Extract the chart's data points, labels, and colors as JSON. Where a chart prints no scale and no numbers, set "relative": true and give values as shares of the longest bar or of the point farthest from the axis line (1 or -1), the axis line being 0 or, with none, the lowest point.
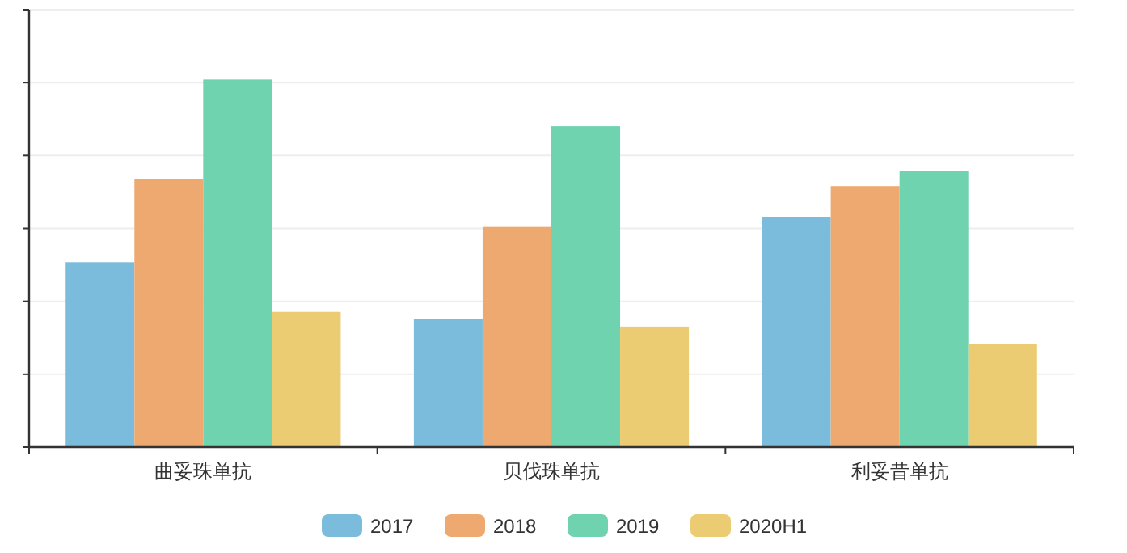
{
  "chart_data": {
    "type": "bar",
    "relative": true,
    "grid": "y",
    "legend": "bottom",
    "categories": [
      "曲妥珠单抗",
      "贝伐珠单抗",
      "利妥昔单抗"
    ],
    "series": [
      {
        "name": "2017",
        "color": "#7bbcdc",
        "values": [
          0.503,
          0.348,
          0.625
        ]
      },
      {
        "name": "2018",
        "color": "#eda96f",
        "values": [
          0.729,
          0.599,
          0.71
        ]
      },
      {
        "name": "2019",
        "color": "#6fd3b0",
        "values": [
          1,
          0.873,
          0.751
        ]
      },
      {
        "name": "2020H1",
        "color": "#ebcc73",
        "values": [
          0.368,
          0.328,
          0.28
        ]
      }
    ]
  }
}
